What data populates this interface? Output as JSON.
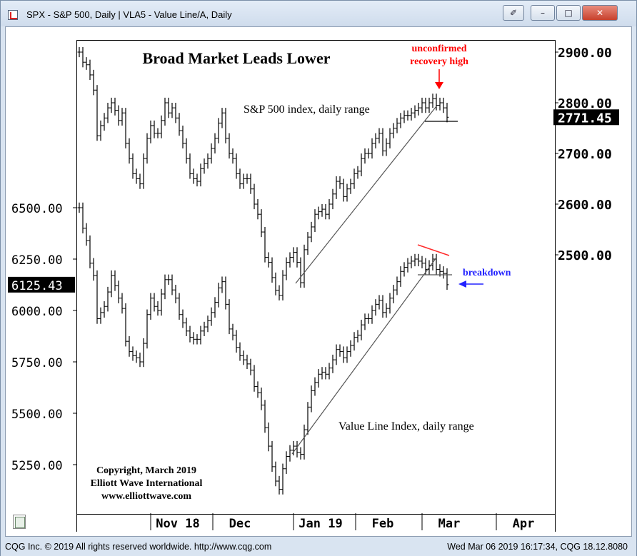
{
  "window": {
    "title": "SPX - S&P 500, Daily  |  VLA5 - Value Line/A, Daily",
    "buttons": {
      "link": "✐",
      "minimize": "–",
      "maximize": "□",
      "close": "✕"
    }
  },
  "status": {
    "left": "CQG Inc. © 2019 All rights reserved worldwide. http://www.cqg.com",
    "right": "Wed Mar 06 2019 16:17:34, CQG 18.12.8080"
  },
  "colors": {
    "price_bar": "#000000",
    "trendline": "#555555",
    "red_line": "#ff2b2b",
    "annotation_red": "#ff0000",
    "annotation_blue": "#2222ff",
    "last_price_bg": "#000000"
  },
  "chart_data": {
    "type": "bar",
    "title": "Broad Market Leads Lower",
    "x_ticks": [
      "Nov 18",
      "Dec",
      "Jan 19",
      "Feb",
      "Mar",
      "Apr"
    ],
    "right_axis": {
      "ticks": [
        "2900.00",
        "2800.00",
        "2700.00",
        "2600.00",
        "2500.00"
      ],
      "range": [
        2400,
        2925
      ],
      "last": "2771.45"
    },
    "left_axis": {
      "ticks": [
        "6500.00",
        "6250.00",
        "6000.00",
        "5750.00",
        "5500.00",
        "5250.00"
      ],
      "range": [
        5050,
        6500
      ],
      "last": "6125.43"
    },
    "annotations": {
      "spx_label": "S&P 500 index, daily range",
      "vla_label": "Value Line Index, daily range",
      "unconfirmed": [
        "unconfirmed",
        "recovery high"
      ],
      "breakdown": "breakdown",
      "copyright": [
        "Copyright, March 2019",
        "Elliott Wave International",
        "www.elliottwave.com"
      ]
    },
    "series": [
      {
        "name": "SPX - S&P 500, Daily",
        "axis": "right",
        "values": [
          2900,
          2880,
          2875,
          2855,
          2825,
          2735,
          2755,
          2770,
          2790,
          2800,
          2785,
          2765,
          2780,
          2720,
          2690,
          2660,
          2650,
          2640,
          2690,
          2730,
          2755,
          2740,
          2740,
          2765,
          2800,
          2780,
          2790,
          2770,
          2745,
          2720,
          2690,
          2660,
          2650,
          2645,
          2670,
          2680,
          2690,
          2710,
          2730,
          2760,
          2780,
          2730,
          2700,
          2690,
          2660,
          2640,
          2650,
          2650,
          2630,
          2600,
          2580,
          2545,
          2495,
          2485,
          2455,
          2430,
          2420,
          2460,
          2485,
          2495,
          2505,
          2485,
          2445,
          2510,
          2535,
          2555,
          2580,
          2585,
          2590,
          2580,
          2600,
          2620,
          2645,
          2640,
          2615,
          2630,
          2640,
          2660,
          2665,
          2690,
          2700,
          2700,
          2720,
          2730,
          2740,
          2705,
          2720,
          2740,
          2750,
          2760,
          2770,
          2775,
          2775,
          2780,
          2785,
          2790,
          2800,
          2790,
          2800,
          2808,
          2795,
          2800,
          2790,
          2771.45
        ]
      },
      {
        "name": "VLA5 - Value Line/A, Daily",
        "axis": "left",
        "values": [
          6500,
          6400,
          6340,
          6230,
          6170,
          5960,
          5990,
          6020,
          6090,
          6170,
          6120,
          6060,
          6010,
          5850,
          5800,
          5780,
          5770,
          5750,
          5840,
          5980,
          6060,
          6020,
          6000,
          6080,
          6150,
          6150,
          6100,
          6060,
          5980,
          5940,
          5900,
          5870,
          5860,
          5860,
          5900,
          5920,
          5950,
          5990,
          6040,
          6110,
          6140,
          6030,
          5910,
          5880,
          5820,
          5780,
          5760,
          5740,
          5710,
          5630,
          5600,
          5540,
          5430,
          5340,
          5240,
          5170,
          5130,
          5230,
          5290,
          5320,
          5340,
          5310,
          5300,
          5420,
          5530,
          5610,
          5650,
          5690,
          5700,
          5690,
          5720,
          5760,
          5810,
          5800,
          5770,
          5800,
          5830,
          5870,
          5880,
          5930,
          5960,
          5960,
          6000,
          6030,
          6050,
          5990,
          6010,
          6060,
          6100,
          6140,
          6190,
          6210,
          6230,
          6240,
          6250,
          6240,
          6230,
          6200,
          6220,
          6250,
          6200,
          6190,
          6180,
          6125.43
        ]
      }
    ]
  }
}
